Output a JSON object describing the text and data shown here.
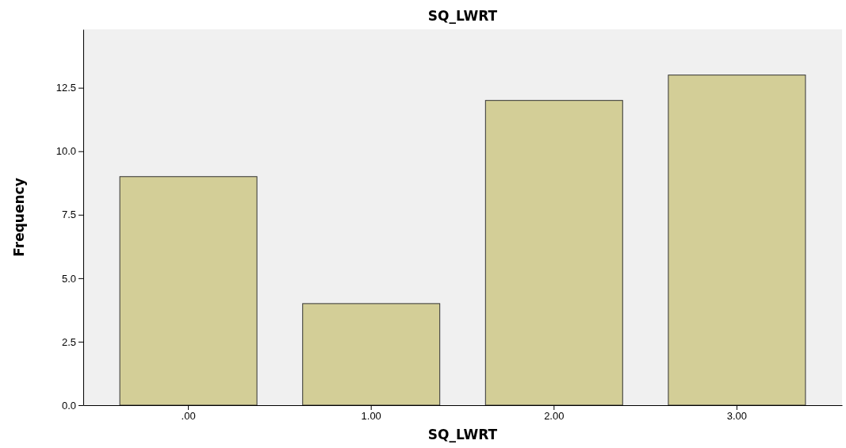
{
  "chart_data": {
    "type": "bar",
    "title": "SQ_LWRT",
    "xlabel": "SQ_LWRT",
    "ylabel": "Frequency",
    "categories": [
      ".00",
      "1.00",
      "2.00",
      "3.00"
    ],
    "values": [
      9,
      4,
      12,
      13
    ],
    "color": "#d3ce97",
    "ylim": [
      0,
      14.8
    ],
    "yticks": [
      {
        "value": 0,
        "label": "0.0"
      },
      2.5,
      {
        "value": 5,
        "label": "5.0"
      },
      7.5,
      {
        "value": 10,
        "label": "10.0"
      },
      12.5
    ],
    "grid": false
  }
}
